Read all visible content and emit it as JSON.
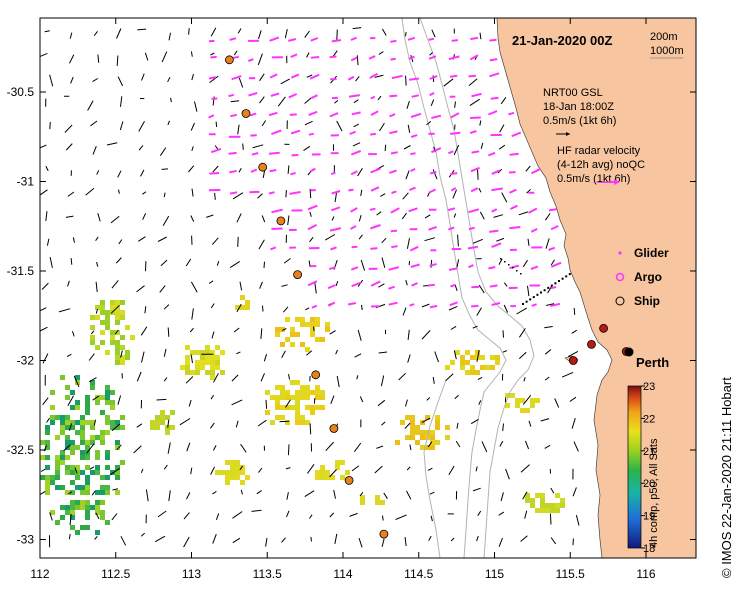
{
  "title": "21-Jan-2020 00Z",
  "isobath_legend": {
    "line1": "200m",
    "line2": "1000m"
  },
  "model_legend": {
    "line1": "NRT00 GSL",
    "line2": "18-Jan 18:00Z",
    "line3": "0.5m/s (1kt 6h)"
  },
  "radar_legend": {
    "line1": "HF radar velocity",
    "line2": "(4-12h avg) noQC",
    "line3": "0.5m/s (1kt 6h)"
  },
  "symbol_legend": {
    "glider": "Glider",
    "argo": "Argo",
    "ship": "Ship"
  },
  "city": "Perth",
  "credit": "© IMOS 22-Jan-2020 21:11 Hobart",
  "colorbar": {
    "label": "4h comp, p50, All Sats",
    "ticks": [
      "23",
      "22",
      "21",
      "20",
      "19",
      "18"
    ],
    "min": 18,
    "max": 23
  },
  "axes": {
    "x_ticks": [
      "112",
      "112.5",
      "113",
      "113.5",
      "114",
      "114.5",
      "115",
      "115.5",
      "116"
    ],
    "y_ticks": [
      "-30.5",
      "-31",
      "-31.5",
      "-32",
      "-32.5",
      "-33"
    ],
    "x_range": [
      112,
      116.3
    ],
    "y_range": [
      -33.1,
      -30.1
    ]
  },
  "colors": {
    "land": "#f7c59f",
    "radar": "#ff33ff",
    "argo_fill": "#e8801c",
    "ship_fill": "#b81c10",
    "isobath": "#b3b3b3"
  },
  "argo_floats": [
    [
      113.25,
      -30.32
    ],
    [
      113.36,
      -30.62
    ],
    [
      113.47,
      -30.92
    ],
    [
      113.59,
      -31.22
    ],
    [
      113.7,
      -31.52
    ],
    [
      113.82,
      -32.08
    ],
    [
      113.94,
      -32.38
    ],
    [
      114.04,
      -32.67
    ],
    [
      114.27,
      -32.97
    ]
  ],
  "ships": [
    [
      115.52,
      -32.0
    ],
    [
      115.64,
      -31.91
    ],
    [
      115.72,
      -31.82
    ],
    [
      115.87,
      -31.95
    ]
  ]
}
